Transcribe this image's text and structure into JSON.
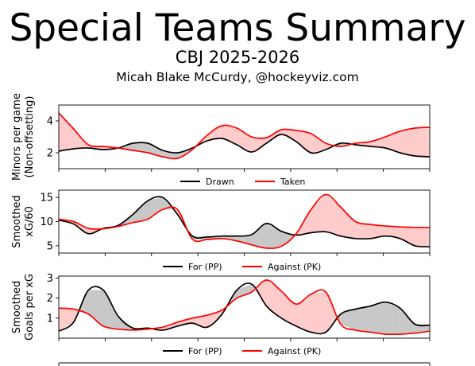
{
  "title": "Special Teams Summary",
  "subtitle": "CBJ 2025-2026",
  "byline": "Micah Blake McCurdy, @hockeyviz.com",
  "chart_data": [
    {
      "type": "line",
      "ylabel_lines": [
        "Minors per game",
        "(Non-offsetting)"
      ],
      "ylim": [
        1.0,
        5.0
      ],
      "yticks": [
        2,
        4
      ],
      "xlim": [
        0,
        100
      ],
      "x": [
        0,
        4,
        8,
        12,
        16,
        20,
        24,
        28,
        32,
        36,
        40,
        44,
        48,
        52,
        56,
        60,
        64,
        68,
        72,
        76,
        80,
        84,
        88,
        92,
        96,
        100
      ],
      "series": [
        {
          "name": "Drawn",
          "color": "#000000",
          "values": [
            2.1,
            2.25,
            2.3,
            2.2,
            2.3,
            2.6,
            2.6,
            2.15,
            2.0,
            2.3,
            2.75,
            2.9,
            2.5,
            2.05,
            2.6,
            3.15,
            2.7,
            2.0,
            2.2,
            2.6,
            2.5,
            2.4,
            2.3,
            2.0,
            1.8,
            1.75
          ]
        },
        {
          "name": "Taken",
          "color": "#ff0000",
          "values": [
            4.5,
            3.5,
            2.5,
            2.4,
            2.3,
            2.15,
            2.0,
            1.75,
            1.65,
            2.2,
            3.1,
            3.7,
            3.55,
            3.0,
            2.95,
            3.45,
            3.4,
            3.2,
            2.6,
            2.4,
            2.6,
            2.7,
            3.0,
            3.35,
            3.55,
            3.6
          ]
        }
      ],
      "fill_colors": {
        "drawn_above": "#c8c8c8",
        "taken_above": "#ffcccc"
      },
      "legend": [
        "Drawn",
        "Taken"
      ]
    },
    {
      "type": "line",
      "ylabel_lines": [
        "Smoothed",
        "xG/60"
      ],
      "ylim": [
        3.5,
        16.5
      ],
      "yticks": [
        5,
        10,
        15
      ],
      "xlim": [
        0,
        100
      ],
      "x": [
        0,
        4,
        8,
        12,
        16,
        20,
        24,
        28,
        32,
        36,
        40,
        44,
        48,
        52,
        56,
        60,
        64,
        68,
        72,
        76,
        80,
        84,
        88,
        92,
        96,
        100
      ],
      "series": [
        {
          "name": "For (PP)",
          "color": "#000000",
          "values": [
            10.3,
            9.5,
            7.5,
            8.6,
            9.2,
            11.5,
            14.3,
            15.0,
            11.5,
            7.0,
            6.8,
            7.0,
            7.0,
            7.3,
            9.6,
            8.0,
            7.2,
            7.7,
            7.9,
            7.0,
            6.5,
            6.5,
            7.0,
            6.5,
            5.0,
            4.8
          ]
        },
        {
          "name": "Against (PK)",
          "color": "#ff0000",
          "values": [
            10.5,
            10.0,
            8.6,
            8.5,
            9.0,
            9.8,
            10.5,
            12.5,
            12.5,
            6.4,
            6.3,
            6.5,
            6.0,
            5.2,
            4.5,
            4.9,
            7.5,
            12.5,
            15.6,
            13.0,
            10.0,
            9.4,
            9.1,
            8.9,
            8.8,
            8.8
          ]
        }
      ],
      "fill_colors": {
        "for_above": "#c8c8c8",
        "against_above": "#ffcccc"
      },
      "legend": [
        "For (PP)",
        "Against (PK)"
      ]
    },
    {
      "type": "line",
      "ylabel_lines": [
        "Smoothed",
        "Goals per xG"
      ],
      "ylim": [
        0.0,
        3.1
      ],
      "yticks": [
        1,
        2,
        3
      ],
      "xlim": [
        0,
        100
      ],
      "x": [
        0,
        4,
        8,
        12,
        16,
        20,
        24,
        28,
        32,
        36,
        40,
        44,
        48,
        52,
        56,
        60,
        64,
        68,
        72,
        76,
        80,
        84,
        88,
        92,
        96,
        100
      ],
      "series": [
        {
          "name": "For (PP)",
          "color": "#000000",
          "values": [
            0.35,
            0.8,
            2.4,
            2.4,
            1.1,
            0.5,
            0.5,
            0.4,
            0.6,
            0.75,
            0.55,
            1.2,
            2.4,
            2.7,
            1.6,
            1.0,
            0.6,
            0.3,
            0.3,
            1.2,
            1.45,
            1.6,
            1.8,
            1.5,
            0.7,
            0.65
          ]
        },
        {
          "name": "Against (PK)",
          "color": "#ff0000",
          "values": [
            1.5,
            1.45,
            1.2,
            0.6,
            0.45,
            0.4,
            0.45,
            0.55,
            0.8,
            1.0,
            1.15,
            1.4,
            2.0,
            2.3,
            2.9,
            2.35,
            1.7,
            2.2,
            2.3,
            0.7,
            0.4,
            0.3,
            0.2,
            0.2,
            0.25,
            0.35
          ]
        }
      ],
      "fill_colors": {
        "for_above": "#c8c8c8",
        "against_above": "#ffcccc"
      },
      "legend": [
        "For (PP)",
        "Against (PK)"
      ]
    }
  ]
}
